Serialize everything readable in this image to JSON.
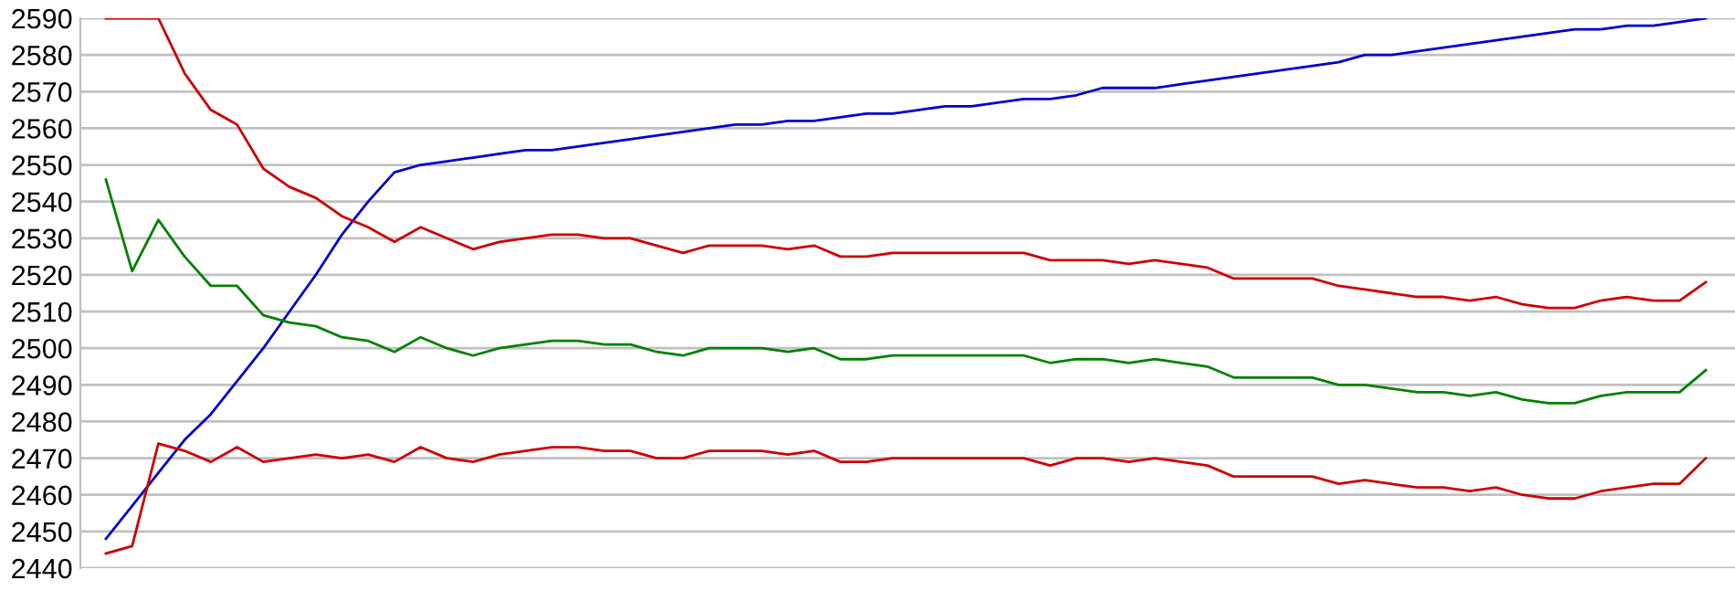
{
  "chart_data": {
    "type": "line",
    "categories": [
      null,
      null,
      null,
      null,
      null,
      null,
      null,
      null,
      null,
      null,
      null,
      null,
      null,
      null,
      null,
      null,
      null,
      null,
      null,
      null,
      null,
      null,
      null,
      null,
      null,
      null,
      null,
      null,
      null,
      null,
      null,
      null,
      null,
      null,
      null,
      null,
      null,
      null,
      null,
      null,
      null,
      null,
      null,
      null,
      null,
      null,
      null,
      null,
      null,
      null,
      null,
      null,
      null,
      null,
      null,
      null,
      null,
      null,
      null,
      null,
      null,
      null
    ],
    "ylim": [
      2440,
      2590
    ],
    "yticks": [
      2440,
      2450,
      2460,
      2470,
      2480,
      2490,
      2500,
      2510,
      2520,
      2530,
      2540,
      2550,
      2560,
      2570,
      2580,
      2590
    ],
    "grid": "y",
    "tick_labels": "y",
    "marker": "none",
    "line_style": "solid",
    "series": [
      {
        "color": "#0000cc",
        "values": [
          2448,
          2457,
          2466,
          2475,
          2482,
          2491,
          2500,
          2510,
          2520,
          2531,
          2540,
          2548,
          2550,
          2551,
          2552,
          2553,
          2554,
          2554,
          2555,
          2556,
          2557,
          2558,
          2559,
          2560,
          2561,
          2561,
          2562,
          2562,
          2563,
          2564,
          2564,
          2565,
          2566,
          2566,
          2567,
          2568,
          2568,
          2569,
          2571,
          2571,
          2571,
          2572,
          2573,
          2574,
          2575,
          2576,
          2577,
          2578,
          2580,
          2580,
          2581,
          2582,
          2583,
          2584,
          2585,
          2586,
          2587,
          2587,
          2588,
          2588,
          2589,
          2590
        ]
      },
      {
        "color": "#cc0000",
        "values": [
          2590,
          2590,
          2590,
          2575,
          2565,
          2561,
          2549,
          2544,
          2541,
          2536,
          2533,
          2529,
          2533,
          2530,
          2527,
          2529,
          2530,
          2531,
          2531,
          2530,
          2530,
          2528,
          2526,
          2528,
          2528,
          2528,
          2527,
          2528,
          2525,
          2525,
          2526,
          2526,
          2526,
          2526,
          2526,
          2526,
          2524,
          2524,
          2524,
          2523,
          2524,
          2523,
          2522,
          2519,
          2519,
          2519,
          2519,
          2517,
          2516,
          2515,
          2514,
          2514,
          2513,
          2514,
          2512,
          2511,
          2511,
          2513,
          2514,
          2513,
          2513,
          2518
        ]
      },
      {
        "color": "#008000",
        "values": [
          2546,
          2521,
          2535,
          2525,
          2517,
          2517,
          2509,
          2507,
          2506,
          2503,
          2502,
          2499,
          2503,
          2500,
          2498,
          2500,
          2501,
          2502,
          2502,
          2501,
          2501,
          2499,
          2498,
          2500,
          2500,
          2500,
          2499,
          2500,
          2497,
          2497,
          2498,
          2498,
          2498,
          2498,
          2498,
          2498,
          2496,
          2497,
          2497,
          2496,
          2497,
          2496,
          2495,
          2492,
          2492,
          2492,
          2492,
          2490,
          2490,
          2489,
          2488,
          2488,
          2487,
          2488,
          2486,
          2485,
          2485,
          2487,
          2488,
          2488,
          2488,
          2494
        ]
      },
      {
        "color": "#cc0000",
        "values": [
          2444,
          2446,
          2474,
          2472,
          2469,
          2473,
          2469,
          2470,
          2471,
          2470,
          2471,
          2469,
          2473,
          2470,
          2469,
          2471,
          2472,
          2473,
          2473,
          2472,
          2472,
          2470,
          2470,
          2472,
          2472,
          2472,
          2471,
          2472,
          2469,
          2469,
          2470,
          2470,
          2470,
          2470,
          2470,
          2470,
          2468,
          2470,
          2470,
          2469,
          2470,
          2469,
          2468,
          2465,
          2465,
          2465,
          2465,
          2463,
          2464,
          2463,
          2462,
          2462,
          2461,
          2462,
          2460,
          2459,
          2459,
          2461,
          2462,
          2463,
          2463,
          2470
        ]
      }
    ]
  }
}
